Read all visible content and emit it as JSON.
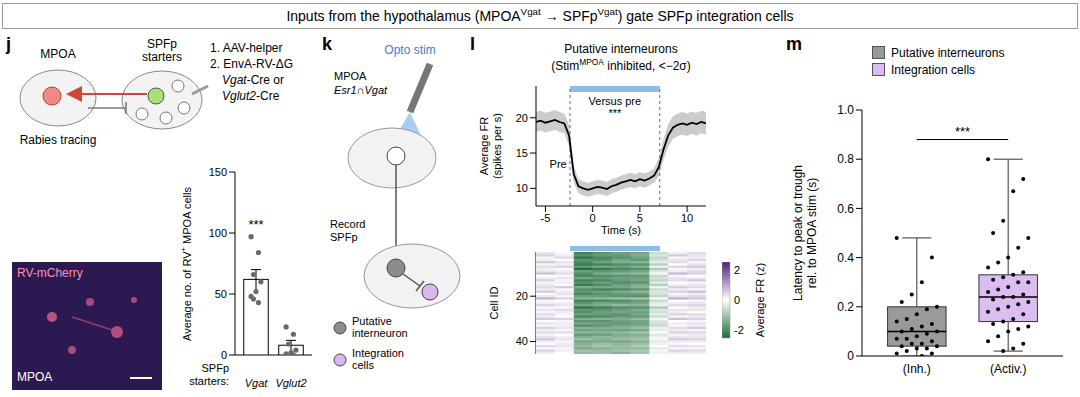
{
  "header": {
    "title": [
      "Inputs from the hypothalamus (MPOA",
      "Vgat",
      " → SPFp",
      "Vgat",
      ") gate SPFp integration cells"
    ]
  },
  "diagrams": {
    "j": {
      "region_left": "MPOA",
      "region_right": [
        "SPFp",
        "starters"
      ],
      "caption": "Rabies tracing",
      "steps": [
        "1. AAV-helper",
        "2. EnvA-RV-ΔG",
        "Vgat-Cre or",
        "Vglut2-Cre"
      ],
      "image": {
        "label": "RV-mCherry",
        "region": "MPOA"
      }
    },
    "k": {
      "panel": "k",
      "stim": "Opto stim",
      "region": "MPOA",
      "cells": "Esr1∩Vgat",
      "record": [
        "Record",
        "SPFp"
      ],
      "legend": [
        "Putative interneuron",
        "Integration cells"
      ]
    }
  },
  "chart_data": [
    {
      "panel": "j",
      "type": "bar",
      "categories": [
        "Vgat",
        "Vglut2"
      ],
      "values": [
        62,
        8
      ],
      "errors": [
        8,
        4
      ],
      "points": [
        [
          97,
          84,
          66,
          60,
          52,
          48,
          43,
          46
        ],
        [
          23,
          17,
          9,
          4,
          2,
          1,
          0
        ]
      ],
      "color": "#ffffff",
      "ylabel": [
        "Average no. of RV",
        "+",
        " MPOA cells"
      ],
      "xlabel": "SPFp starters:",
      "ylim": [
        0,
        150
      ],
      "yticks": [
        0,
        50,
        100,
        150
      ],
      "annotations": [
        "***"
      ]
    },
    {
      "panel": "l",
      "type": "line",
      "title": "Putative interneurons",
      "subtitle": [
        "(Stim",
        "MPOA",
        " inhibited, <−2σ)"
      ],
      "ylabel": "Average FR (spikes per s)",
      "xlabel": "Time (s)",
      "x": [
        -6,
        -5.5,
        -5,
        -4.5,
        -4,
        -3.5,
        -3,
        -2.5,
        -2,
        -1.5,
        -1,
        -0.5,
        0,
        0.5,
        1,
        1.5,
        2,
        2.5,
        3,
        3.5,
        4,
        4.5,
        5,
        5.5,
        6,
        6.5,
        7,
        7.5,
        8,
        8.5,
        9,
        9.5,
        10,
        10.5,
        11,
        11.5,
        12
      ],
      "values": [
        19.4,
        19.6,
        19.3,
        19.5,
        19.7,
        19.4,
        19.2,
        17.5,
        12.0,
        10.3,
        10.0,
        9.8,
        10.0,
        10.2,
        10.1,
        9.9,
        10.3,
        10.5,
        10.8,
        11.0,
        11.2,
        11.0,
        11.3,
        11.1,
        11.4,
        11.8,
        13.0,
        15.5,
        17.5,
        18.6,
        19.0,
        19.2,
        19.0,
        19.3,
        19.1,
        19.4,
        19.2
      ],
      "errors": [
        1.4,
        1.4,
        1.4,
        1.4,
        1.4,
        1.4,
        1.4,
        1.5,
        1.2,
        1.0,
        1.0,
        1.0,
        1.0,
        1.0,
        1.0,
        1.0,
        1.0,
        1.0,
        1.0,
        1.0,
        1.0,
        1.0,
        1.0,
        1.0,
        1.0,
        1.0,
        1.3,
        1.5,
        1.6,
        1.6,
        1.6,
        1.6,
        1.6,
        1.6,
        1.6,
        1.6,
        1.6
      ],
      "color": "#000000",
      "stim": [
        -2.4,
        7.1
      ],
      "xlim": [
        -6,
        12
      ],
      "xticks": [
        -5,
        0,
        5,
        10
      ],
      "ylim": [
        7.5,
        24.5
      ],
      "yticks": [
        10,
        15,
        20
      ],
      "annotations": [
        "Pre",
        "Versus pre",
        "***"
      ]
    },
    {
      "type": "heatmap",
      "ylabel": "Cell ID",
      "tick_labels": "y",
      "x_bins": [
        -6,
        -4,
        -2,
        0,
        2,
        4,
        6,
        8,
        10,
        12
      ],
      "xlim": [
        -6,
        12
      ],
      "ylim": [
        0.5,
        45.5
      ],
      "yticks": [
        20,
        40
      ],
      "cells": [
        [
          0.3,
          0.1,
          -2.1,
          -1.8,
          -1.6,
          -1.5,
          -0.6,
          0.2,
          0.4
        ],
        [
          0.5,
          0.2,
          -1.9,
          -1.7,
          -1.7,
          -1.4,
          -0.4,
          0.6,
          0.3
        ],
        [
          -0.1,
          0.4,
          -2.3,
          -2.0,
          -1.8,
          -1.6,
          -0.7,
          0.1,
          0.2
        ],
        [
          0.2,
          0.0,
          -1.8,
          -1.9,
          -1.5,
          -1.7,
          -0.5,
          0.3,
          0.5
        ],
        [
          0.6,
          0.3,
          -2.0,
          -1.6,
          -1.4,
          -1.3,
          -0.3,
          0.4,
          0.1
        ],
        [
          0.1,
          -0.2,
          -2.2,
          -2.1,
          -1.9,
          -1.8,
          -0.8,
          0.0,
          0.3
        ],
        [
          0.4,
          0.5,
          -1.7,
          -1.5,
          -1.6,
          -1.4,
          -0.2,
          0.5,
          0.6
        ],
        [
          -0.2,
          0.1,
          -2.4,
          -2.2,
          -2.0,
          -1.9,
          -0.9,
          -0.1,
          0.2
        ],
        [
          0.3,
          0.2,
          -1.6,
          -1.8,
          -1.7,
          -1.5,
          -0.4,
          0.2,
          0.4
        ],
        [
          0.7,
          0.4,
          -1.9,
          -1.4,
          -1.3,
          -1.2,
          -0.1,
          0.8,
          0.5
        ],
        [
          0.0,
          -0.1,
          -2.0,
          -1.9,
          -1.8,
          -1.7,
          -0.6,
          0.1,
          0.0
        ],
        [
          0.2,
          0.3,
          -1.5,
          -1.7,
          -1.6,
          -1.6,
          -0.5,
          0.3,
          0.2
        ],
        [
          0.5,
          0.1,
          -2.1,
          -2.0,
          -1.7,
          -1.5,
          -0.7,
          0.4,
          0.6
        ],
        [
          0.1,
          0.2,
          -1.8,
          -1.6,
          -1.9,
          -1.8,
          -0.3,
          0.0,
          0.1
        ],
        [
          -0.3,
          0.0,
          -2.2,
          -1.9,
          -1.6,
          -1.4,
          -0.8,
          -0.2,
          0.3
        ],
        [
          0.4,
          0.6,
          -1.4,
          -1.5,
          -1.5,
          -1.3,
          -0.2,
          0.6,
          0.4
        ],
        [
          0.2,
          0.1,
          -1.9,
          -2.1,
          -2.0,
          -1.8,
          -0.6,
          0.2,
          0.1
        ],
        [
          0.6,
          0.2,
          -1.7,
          -1.6,
          -1.4,
          -1.2,
          -0.4,
          0.5,
          0.7
        ],
        [
          0.0,
          0.3,
          -2.0,
          -1.8,
          -1.7,
          -1.6,
          -0.5,
          0.1,
          0.2
        ],
        [
          0.3,
          -0.1,
          -1.6,
          -1.7,
          -1.8,
          -1.9,
          -0.7,
          0.3,
          0.4
        ],
        [
          0.8,
          0.5,
          -1.3,
          -1.2,
          -1.1,
          -1.0,
          0.1,
          0.9,
          0.6
        ],
        [
          0.1,
          0.0,
          -2.1,
          -2.0,
          -1.9,
          -1.7,
          -0.6,
          0.0,
          0.1
        ],
        [
          0.2,
          0.2,
          -1.8,
          -1.5,
          -1.6,
          -1.5,
          -0.3,
          0.2,
          0.3
        ],
        [
          0.5,
          0.3,
          -1.5,
          -1.4,
          -1.2,
          -1.3,
          -0.2,
          0.4,
          0.5
        ],
        [
          -0.1,
          0.1,
          -2.3,
          -2.1,
          -1.9,
          -1.8,
          -0.9,
          0.0,
          0.2
        ],
        [
          0.3,
          0.4,
          -1.7,
          -1.8,
          -1.6,
          -1.4,
          -0.4,
          0.3,
          0.3
        ],
        [
          0.1,
          0.2,
          -1.9,
          -1.6,
          -1.5,
          -1.6,
          -0.5,
          0.2,
          0.0
        ],
        [
          0.4,
          0.1,
          -1.6,
          -1.7,
          -1.8,
          -1.5,
          -0.3,
          0.5,
          0.4
        ],
        [
          0.2,
          0.0,
          -2.0,
          -1.9,
          -1.7,
          -1.7,
          -0.6,
          0.1,
          0.2
        ],
        [
          0.6,
          0.5,
          -1.4,
          -1.3,
          -1.4,
          -1.2,
          -0.1,
          0.7,
          0.5
        ],
        [
          0.0,
          0.1,
          -1.8,
          -1.8,
          -1.6,
          -1.5,
          -0.4,
          0.0,
          0.1
        ],
        [
          0.3,
          0.2,
          -1.5,
          -1.6,
          -1.7,
          -1.6,
          -0.5,
          0.2,
          0.3
        ],
        [
          0.1,
          -0.2,
          -1.9,
          -1.7,
          -1.5,
          -1.4,
          -0.6,
          0.1,
          0.2
        ],
        [
          0.5,
          0.3,
          -1.3,
          -1.4,
          -1.3,
          -1.1,
          -0.2,
          0.4,
          0.6
        ],
        [
          0.2,
          0.1,
          -1.6,
          -1.5,
          -1.6,
          -1.5,
          -0.3,
          0.2,
          0.1
        ],
        [
          0.4,
          0.4,
          -1.2,
          -1.3,
          -1.2,
          -1.0,
          0.0,
          0.5,
          0.4
        ],
        [
          0.1,
          0.0,
          -1.7,
          -1.6,
          -1.4,
          -1.3,
          -0.4,
          0.1,
          0.2
        ],
        [
          0.3,
          0.2,
          -1.4,
          -1.2,
          -1.3,
          -1.2,
          -0.2,
          0.3,
          0.3
        ],
        [
          0.6,
          0.3,
          -1.1,
          -1.3,
          -1.1,
          -1.0,
          0.1,
          0.6,
          0.5
        ],
        [
          0.2,
          0.1,
          -1.5,
          -1.4,
          -1.5,
          -1.3,
          -0.3,
          0.2,
          0.2
        ],
        [
          0.0,
          0.2,
          -1.3,
          -1.1,
          -1.2,
          -1.1,
          -0.2,
          0.1,
          0.0
        ],
        [
          0.4,
          0.3,
          -1.2,
          -1.0,
          -1.1,
          -0.9,
          0.0,
          0.4,
          0.3
        ],
        [
          0.1,
          0.1,
          -1.4,
          -1.3,
          -1.2,
          -1.2,
          -0.3,
          0.1,
          0.1
        ],
        [
          0.5,
          0.2,
          -1.0,
          -1.1,
          -1.0,
          -0.9,
          0.1,
          0.5,
          0.4
        ],
        [
          0.2,
          0.0,
          -1.2,
          -1.1,
          -1.3,
          -1.0,
          -0.2,
          0.2,
          0.2
        ]
      ],
      "colorbar": {
        "label": "Average FR (z)",
        "range": [
          -2.5,
          2.5
        ],
        "ticks": [
          -2,
          0,
          2
        ],
        "colors": [
          "#1d6b37",
          "#ffffff",
          "#4f1f74"
        ]
      }
    },
    {
      "panel": "m",
      "type": "box",
      "categories": [
        "(Inh.)",
        "(Activ.)"
      ],
      "ylabel": "Latency to peak or trough rel. to MPOA stim (s)",
      "legend": "top",
      "ylim": [
        0,
        1
      ],
      "yticks": [
        0,
        0.2,
        0.4,
        0.6,
        0.8,
        {
          "value": 1,
          "label": "1.0"
        }
      ],
      "annotations": [
        "***"
      ],
      "series": [
        {
          "name": "Putative interneurons",
          "color": "#9a9a9a",
          "box": {
            "whisker_low": 0.0,
            "q1": 0.04,
            "median": 0.1,
            "q3": 0.2,
            "whisker_high": 0.48
          },
          "points": [
            0.48,
            0.4,
            0.3,
            0.25,
            0.22,
            0.2,
            0.19,
            0.17,
            0.15,
            0.14,
            0.13,
            0.12,
            0.11,
            0.1,
            0.1,
            0.09,
            0.08,
            0.07,
            0.07,
            0.06,
            0.05,
            0.05,
            0.04,
            0.04,
            0.03,
            0.03,
            0.02,
            0.01,
            0.01,
            0.0
          ]
        },
        {
          "name": "Integration cells",
          "color": "#dcbdf2",
          "box": {
            "whisker_low": 0.02,
            "q1": 0.14,
            "median": 0.24,
            "q3": 0.33,
            "whisker_high": 0.8
          },
          "points": [
            0.8,
            0.72,
            0.67,
            0.55,
            0.5,
            0.48,
            0.44,
            0.4,
            0.38,
            0.36,
            0.34,
            0.33,
            0.32,
            0.31,
            0.3,
            0.3,
            0.28,
            0.27,
            0.26,
            0.25,
            0.24,
            0.24,
            0.23,
            0.22,
            0.21,
            0.2,
            0.19,
            0.18,
            0.17,
            0.15,
            0.14,
            0.13,
            0.12,
            0.11,
            0.1,
            0.08,
            0.06,
            0.05,
            0.03,
            0.02
          ]
        }
      ]
    }
  ]
}
